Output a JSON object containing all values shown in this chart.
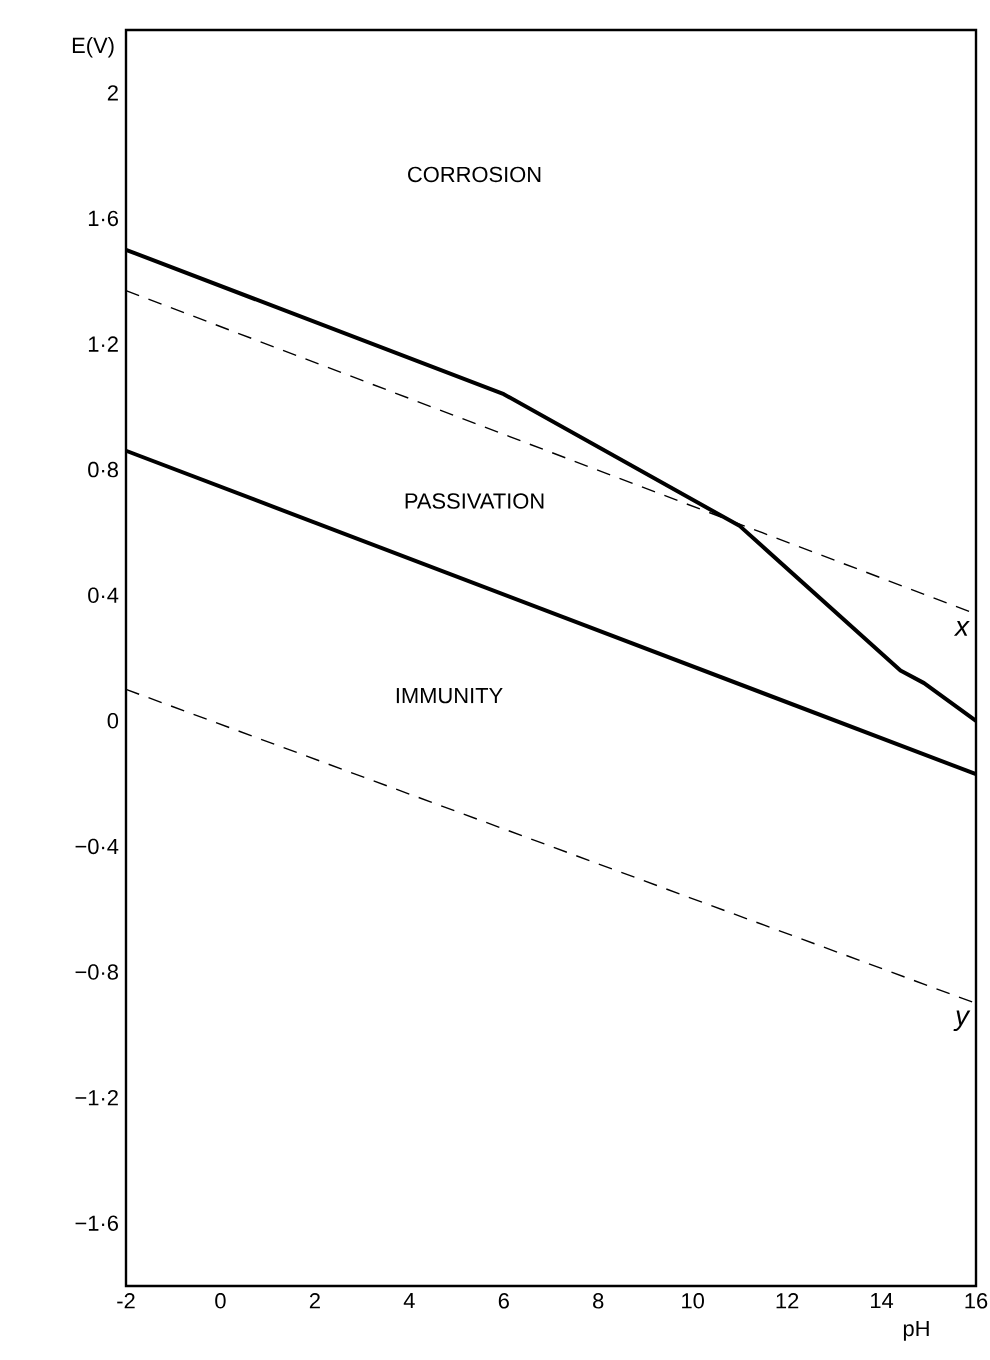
{
  "chart_data": {
    "type": "line",
    "xlabel": "pH",
    "ylabel": "E(V)",
    "xlim": [
      -2,
      16
    ],
    "ylim": [
      -1.8,
      2.2
    ],
    "xticks": [
      -2,
      0,
      2,
      4,
      6,
      8,
      10,
      12,
      14,
      16
    ],
    "yticks": [
      {
        "value": -1.6,
        "label": "−1·6"
      },
      {
        "value": -1.2,
        "label": "−1·2"
      },
      {
        "value": -0.8,
        "label": "−0·8"
      },
      {
        "value": -0.4,
        "label": "−0·4"
      },
      0,
      {
        "value": 0.4,
        "label": "0·4"
      },
      {
        "value": 0.8,
        "label": "0·8"
      },
      {
        "value": 1.2,
        "label": "1·2"
      },
      {
        "value": 1.6,
        "label": "1·6"
      },
      2
    ],
    "grid": false,
    "legend": false,
    "marker": "none",
    "series": [
      {
        "color": "#000000",
        "line_style": "solid",
        "x": [
          -2,
          6,
          11,
          14.4,
          14.9,
          16
        ],
        "values": [
          1.5,
          1.04,
          0.62,
          0.16,
          0.12,
          0.0
        ]
      },
      {
        "color": "#000000",
        "line_style": "solid",
        "x": [
          -2,
          16
        ],
        "values": [
          0.86,
          -0.17
        ]
      },
      {
        "name": "x",
        "color": "#000000",
        "line_style": "dashed",
        "x": [
          -2,
          16
        ],
        "values": [
          1.37,
          0.34
        ]
      },
      {
        "name": "y",
        "color": "#000000",
        "line_style": "dashed",
        "x": [
          -2,
          16
        ],
        "values": [
          0.1,
          -0.9
        ]
      }
    ],
    "annotations": [
      "CORROSION",
      "PASSIVATION",
      "IMMUNITY"
    ]
  }
}
